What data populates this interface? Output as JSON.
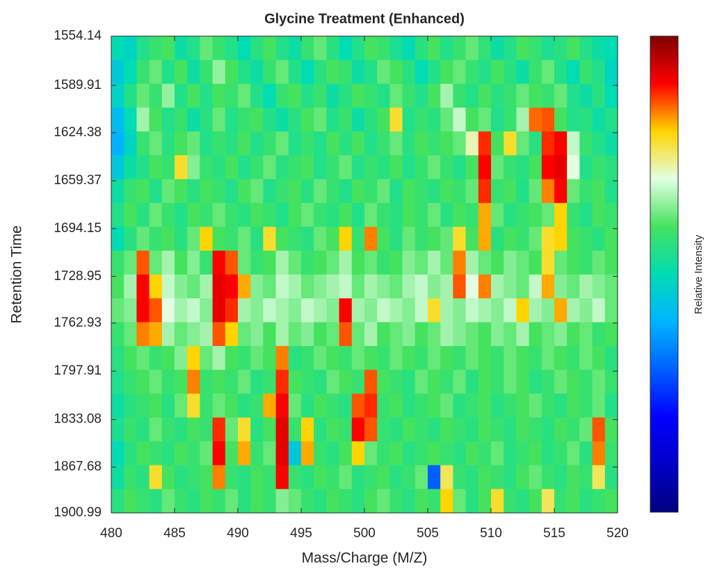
{
  "chart_data": {
    "type": "heatmap",
    "title": "Glycine Treatment (Enhanced)",
    "x_label": "Mass/Charge (M/Z)",
    "y_label": "Retention Time",
    "colorbar_label": "Relative Intensity",
    "xlim": [
      480,
      520
    ],
    "xticks": [
      480,
      485,
      490,
      495,
      500,
      505,
      510,
      515,
      520
    ],
    "ylim": [
      1554.14,
      1900.99
    ],
    "y_reversed": true,
    "yticks": [
      1554.14,
      1589.91,
      1624.38,
      1659.37,
      1694.15,
      1728.95,
      1762.93,
      1797.91,
      1833.08,
      1867.68,
      1900.99
    ],
    "clim": [
      0,
      1
    ],
    "colormap": [
      "#000080",
      "#0000c8",
      "#0000ff",
      "#0060ff",
      "#00b4ff",
      "#00dcb4",
      "#44e25e",
      "#e2ffe2",
      "#ffd400",
      "#ff0000",
      "#800000"
    ],
    "x": [
      480.5,
      481.5,
      482.5,
      483.5,
      484.5,
      485.5,
      486.5,
      487.5,
      488.5,
      489.5,
      490.5,
      491.5,
      492.5,
      493.5,
      494.5,
      495.5,
      496.5,
      497.5,
      498.5,
      499.5,
      500.5,
      501.5,
      502.5,
      503.5,
      504.5,
      505.5,
      506.5,
      507.5,
      508.5,
      509.5,
      510.5,
      511.5,
      512.5,
      513.5,
      514.5,
      515.5,
      516.5,
      517.5,
      518.5,
      519.5
    ],
    "y": [
      1562.81,
      1580.15,
      1597.5,
      1614.84,
      1632.18,
      1649.52,
      1666.87,
      1684.21,
      1701.55,
      1718.9,
      1736.24,
      1753.58,
      1770.93,
      1788.27,
      1805.61,
      1822.95,
      1840.3,
      1857.64,
      1874.98,
      1892.33
    ],
    "values": [
      [
        0.5,
        0.48,
        0.55,
        0.58,
        0.6,
        0.52,
        0.55,
        0.62,
        0.58,
        0.55,
        0.5,
        0.56,
        0.6,
        0.55,
        0.52,
        0.58,
        0.62,
        0.56,
        0.5,
        0.55,
        0.6,
        0.58,
        0.54,
        0.5,
        0.56,
        0.6,
        0.55,
        0.58,
        0.62,
        0.57,
        0.52,
        0.55,
        0.6,
        0.58,
        0.54,
        0.56,
        0.6,
        0.55,
        0.52,
        0.5
      ],
      [
        0.45,
        0.5,
        0.58,
        0.62,
        0.55,
        0.6,
        0.52,
        0.58,
        0.65,
        0.6,
        0.55,
        0.52,
        0.58,
        0.62,
        0.55,
        0.5,
        0.56,
        0.6,
        0.58,
        0.52,
        0.55,
        0.62,
        0.6,
        0.56,
        0.5,
        0.55,
        0.6,
        0.62,
        0.58,
        0.55,
        0.6,
        0.56,
        0.52,
        0.58,
        0.62,
        0.55,
        0.5,
        0.58,
        0.55,
        0.48
      ],
      [
        0.48,
        0.55,
        0.62,
        0.58,
        0.65,
        0.55,
        0.6,
        0.55,
        0.6,
        0.58,
        0.62,
        0.55,
        0.5,
        0.58,
        0.6,
        0.55,
        0.58,
        0.52,
        0.56,
        0.6,
        0.58,
        0.55,
        0.62,
        0.58,
        0.55,
        0.6,
        0.66,
        0.58,
        0.55,
        0.6,
        0.56,
        0.58,
        0.62,
        0.6,
        0.58,
        0.62,
        0.55,
        0.52,
        0.56,
        0.5
      ],
      [
        0.42,
        0.5,
        0.66,
        0.6,
        0.55,
        0.58,
        0.52,
        0.56,
        0.62,
        0.55,
        0.58,
        0.6,
        0.55,
        0.52,
        0.56,
        0.6,
        0.62,
        0.55,
        0.58,
        0.52,
        0.56,
        0.6,
        0.78,
        0.55,
        0.58,
        0.56,
        0.62,
        0.68,
        0.6,
        0.62,
        0.55,
        0.58,
        0.66,
        0.85,
        0.86,
        0.6,
        0.55,
        0.56,
        0.52,
        0.55
      ],
      [
        0.4,
        0.48,
        0.58,
        0.62,
        0.56,
        0.6,
        0.62,
        0.55,
        0.58,
        0.56,
        0.6,
        0.55,
        0.58,
        0.62,
        0.55,
        0.58,
        0.55,
        0.6,
        0.56,
        0.6,
        0.55,
        0.58,
        0.62,
        0.56,
        0.6,
        0.58,
        0.6,
        0.62,
        0.72,
        0.88,
        0.6,
        0.78,
        0.62,
        0.56,
        0.88,
        0.9,
        0.68,
        0.58,
        0.55,
        0.52
      ],
      [
        0.45,
        0.52,
        0.55,
        0.6,
        0.58,
        0.78,
        0.64,
        0.58,
        0.56,
        0.6,
        0.55,
        0.58,
        0.62,
        0.56,
        0.58,
        0.6,
        0.55,
        0.58,
        0.62,
        0.55,
        0.58,
        0.56,
        0.6,
        0.55,
        0.58,
        0.62,
        0.58,
        0.55,
        0.6,
        0.9,
        0.62,
        0.58,
        0.56,
        0.6,
        0.9,
        0.92,
        0.7,
        0.55,
        0.58,
        0.56
      ],
      [
        0.52,
        0.58,
        0.6,
        0.55,
        0.62,
        0.6,
        0.56,
        0.6,
        0.58,
        0.55,
        0.6,
        0.62,
        0.55,
        0.58,
        0.6,
        0.56,
        0.62,
        0.58,
        0.55,
        0.6,
        0.58,
        0.62,
        0.55,
        0.6,
        0.58,
        0.56,
        0.6,
        0.58,
        0.62,
        0.88,
        0.58,
        0.6,
        0.55,
        0.62,
        0.84,
        0.9,
        0.62,
        0.58,
        0.6,
        0.55
      ],
      [
        0.55,
        0.6,
        0.56,
        0.62,
        0.58,
        0.55,
        0.6,
        0.58,
        0.62,
        0.58,
        0.56,
        0.6,
        0.58,
        0.55,
        0.6,
        0.62,
        0.58,
        0.56,
        0.6,
        0.55,
        0.62,
        0.58,
        0.56,
        0.6,
        0.58,
        0.62,
        0.56,
        0.6,
        0.58,
        0.82,
        0.62,
        0.56,
        0.58,
        0.6,
        0.62,
        0.8,
        0.58,
        0.55,
        0.6,
        0.58
      ],
      [
        0.5,
        0.56,
        0.62,
        0.58,
        0.6,
        0.56,
        0.62,
        0.8,
        0.6,
        0.58,
        0.62,
        0.56,
        0.78,
        0.6,
        0.58,
        0.56,
        0.62,
        0.6,
        0.8,
        0.58,
        0.84,
        0.6,
        0.56,
        0.62,
        0.58,
        0.6,
        0.62,
        0.78,
        0.6,
        0.82,
        0.56,
        0.6,
        0.58,
        0.62,
        0.78,
        0.8,
        0.6,
        0.58,
        0.56,
        0.6
      ],
      [
        0.58,
        0.62,
        0.86,
        0.62,
        0.66,
        0.6,
        0.64,
        0.58,
        0.9,
        0.86,
        0.62,
        0.58,
        0.6,
        0.66,
        0.62,
        0.58,
        0.6,
        0.62,
        0.66,
        0.6,
        0.62,
        0.58,
        0.6,
        0.64,
        0.62,
        0.66,
        0.62,
        0.84,
        0.66,
        0.62,
        0.6,
        0.64,
        0.62,
        0.6,
        0.78,
        0.62,
        0.6,
        0.58,
        0.62,
        0.6
      ],
      [
        0.6,
        0.66,
        0.9,
        0.8,
        0.68,
        0.64,
        0.62,
        0.66,
        0.92,
        0.9,
        0.82,
        0.64,
        0.62,
        0.68,
        0.66,
        0.62,
        0.64,
        0.66,
        0.68,
        0.62,
        0.66,
        0.64,
        0.62,
        0.66,
        0.68,
        0.64,
        0.66,
        0.86,
        0.7,
        0.84,
        0.66,
        0.64,
        0.62,
        0.68,
        0.82,
        0.64,
        0.62,
        0.66,
        0.64,
        0.62
      ],
      [
        0.62,
        0.64,
        0.9,
        0.86,
        0.7,
        0.66,
        0.68,
        0.64,
        0.92,
        0.88,
        0.66,
        0.64,
        0.68,
        0.66,
        0.64,
        0.68,
        0.66,
        0.64,
        0.9,
        0.66,
        0.64,
        0.68,
        0.66,
        0.64,
        0.68,
        0.78,
        0.66,
        0.64,
        0.68,
        0.66,
        0.64,
        0.68,
        0.8,
        0.66,
        0.64,
        0.82,
        0.66,
        0.64,
        0.68,
        0.62
      ],
      [
        0.58,
        0.62,
        0.84,
        0.82,
        0.66,
        0.62,
        0.64,
        0.66,
        0.86,
        0.8,
        0.62,
        0.64,
        0.6,
        0.66,
        0.62,
        0.64,
        0.6,
        0.62,
        0.86,
        0.62,
        0.66,
        0.6,
        0.62,
        0.64,
        0.6,
        0.62,
        0.66,
        0.64,
        0.62,
        0.6,
        0.64,
        0.62,
        0.66,
        0.6,
        0.62,
        0.64,
        0.6,
        0.62,
        0.58,
        0.6
      ],
      [
        0.56,
        0.6,
        0.62,
        0.58,
        0.6,
        0.64,
        0.8,
        0.62,
        0.66,
        0.6,
        0.58,
        0.62,
        0.6,
        0.84,
        0.56,
        0.58,
        0.62,
        0.6,
        0.58,
        0.62,
        0.6,
        0.58,
        0.62,
        0.6,
        0.58,
        0.62,
        0.6,
        0.58,
        0.62,
        0.6,
        0.58,
        0.62,
        0.6,
        0.58,
        0.62,
        0.6,
        0.58,
        0.62,
        0.6,
        0.56
      ],
      [
        0.55,
        0.58,
        0.6,
        0.62,
        0.58,
        0.6,
        0.84,
        0.58,
        0.6,
        0.58,
        0.62,
        0.56,
        0.58,
        0.88,
        0.6,
        0.58,
        0.56,
        0.62,
        0.6,
        0.58,
        0.86,
        0.6,
        0.58,
        0.56,
        0.62,
        0.6,
        0.58,
        0.62,
        0.56,
        0.6,
        0.58,
        0.62,
        0.6,
        0.56,
        0.58,
        0.62,
        0.6,
        0.58,
        0.62,
        0.58
      ],
      [
        0.52,
        0.56,
        0.58,
        0.6,
        0.56,
        0.62,
        0.78,
        0.58,
        0.62,
        0.6,
        0.56,
        0.58,
        0.82,
        0.9,
        0.62,
        0.56,
        0.6,
        0.58,
        0.56,
        0.86,
        0.88,
        0.58,
        0.6,
        0.56,
        0.58,
        0.6,
        0.62,
        0.56,
        0.58,
        0.6,
        0.56,
        0.58,
        0.6,
        0.62,
        0.58,
        0.56,
        0.6,
        0.58,
        0.62,
        0.55
      ],
      [
        0.54,
        0.58,
        0.56,
        0.62,
        0.58,
        0.56,
        0.6,
        0.58,
        0.88,
        0.62,
        0.78,
        0.56,
        0.6,
        0.92,
        0.58,
        0.8,
        0.56,
        0.6,
        0.58,
        0.9,
        0.86,
        0.58,
        0.56,
        0.6,
        0.58,
        0.56,
        0.6,
        0.58,
        0.56,
        0.6,
        0.58,
        0.56,
        0.6,
        0.58,
        0.56,
        0.6,
        0.58,
        0.62,
        0.86,
        0.6
      ],
      [
        0.5,
        0.56,
        0.6,
        0.58,
        0.56,
        0.6,
        0.58,
        0.62,
        0.9,
        0.6,
        0.82,
        0.58,
        0.62,
        0.92,
        0.45,
        0.82,
        0.58,
        0.56,
        0.6,
        0.8,
        0.62,
        0.58,
        0.6,
        0.56,
        0.58,
        0.6,
        0.58,
        0.56,
        0.6,
        0.58,
        0.62,
        0.56,
        0.58,
        0.6,
        0.56,
        0.58,
        0.62,
        0.56,
        0.84,
        0.58
      ],
      [
        0.52,
        0.58,
        0.56,
        0.78,
        0.6,
        0.56,
        0.58,
        0.6,
        0.84,
        0.58,
        0.56,
        0.6,
        0.58,
        0.9,
        0.58,
        0.56,
        0.6,
        0.58,
        0.62,
        0.56,
        0.58,
        0.6,
        0.56,
        0.58,
        0.62,
        0.3,
        0.76,
        0.58,
        0.56,
        0.6,
        0.58,
        0.56,
        0.6,
        0.62,
        0.58,
        0.56,
        0.6,
        0.58,
        0.76,
        0.56
      ],
      [
        0.56,
        0.6,
        0.58,
        0.56,
        0.62,
        0.58,
        0.56,
        0.6,
        0.58,
        0.62,
        0.56,
        0.6,
        0.58,
        0.64,
        0.62,
        0.58,
        0.56,
        0.6,
        0.58,
        0.56,
        0.6,
        0.62,
        0.58,
        0.56,
        0.6,
        0.58,
        0.8,
        0.62,
        0.56,
        0.6,
        0.78,
        0.58,
        0.56,
        0.6,
        0.76,
        0.58,
        0.6,
        0.56,
        0.58,
        0.6
      ]
    ]
  }
}
